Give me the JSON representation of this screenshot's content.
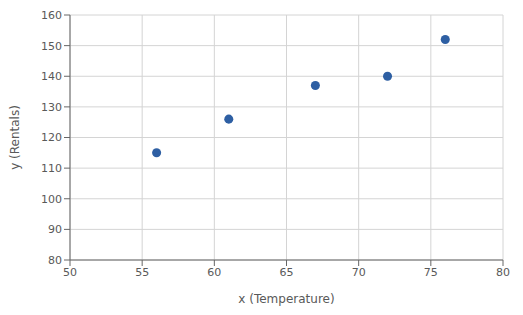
{
  "chart_data": {
    "type": "scatter",
    "xlabel": "x (Temperature)",
    "ylabel": "y (Rentals)",
    "x": [
      56,
      61,
      67,
      72,
      76
    ],
    "y": [
      115,
      126,
      137,
      140,
      152
    ],
    "xlim": [
      50,
      80
    ],
    "ylim": [
      80,
      160
    ],
    "xticks": [
      50,
      55,
      60,
      65,
      70,
      75,
      80
    ],
    "yticks": [
      80,
      90,
      100,
      110,
      120,
      130,
      140,
      150,
      160
    ],
    "color": "#2e5fa3",
    "grid": true
  }
}
